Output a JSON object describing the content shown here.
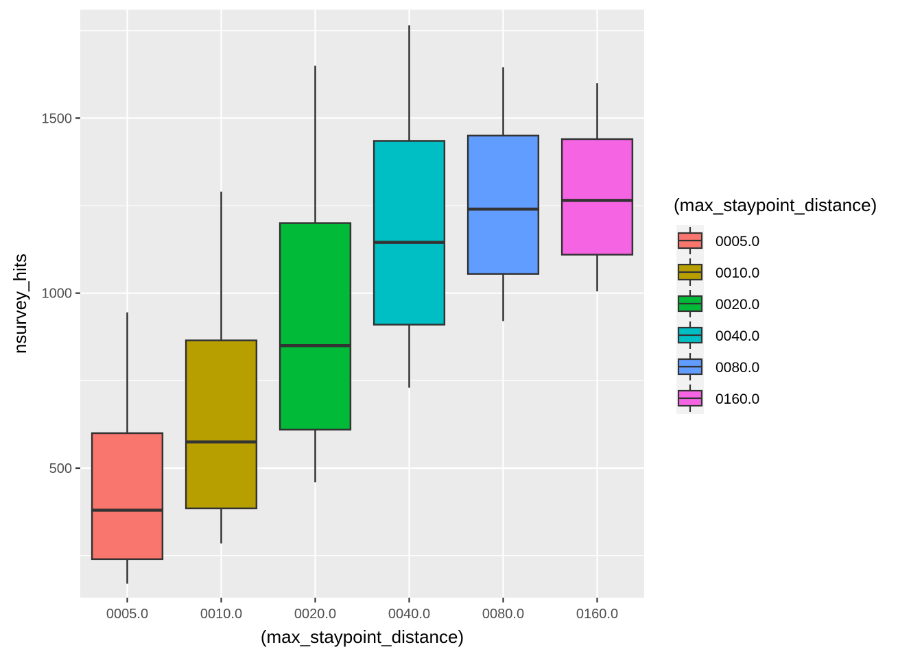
{
  "chart_data": {
    "type": "boxplot",
    "xlabel": "(max_staypoint_distance)",
    "ylabel": "nsurvey_hits",
    "ylim": [
      130,
      1810
    ],
    "y_ticks": [
      500,
      1000,
      1500
    ],
    "grid": true,
    "legend": {
      "title": "(max_staypoint_distance)",
      "position": "right"
    },
    "categories": [
      "0005.0",
      "0010.0",
      "0020.0",
      "0040.0",
      "0080.0",
      "0160.0"
    ],
    "boxes": [
      {
        "category": "0005.0",
        "min": 170,
        "q1": 240,
        "median": 380,
        "q3": 600,
        "max": 945,
        "color": "#F8766D"
      },
      {
        "category": "0010.0",
        "min": 285,
        "q1": 385,
        "median": 575,
        "q3": 865,
        "max": 1290,
        "color": "#B79F00"
      },
      {
        "category": "0020.0",
        "min": 460,
        "q1": 610,
        "median": 850,
        "q3": 1200,
        "max": 1650,
        "color": "#00BA38"
      },
      {
        "category": "0040.0",
        "min": 730,
        "q1": 910,
        "median": 1145,
        "q3": 1435,
        "max": 1765,
        "color": "#00BFC4"
      },
      {
        "category": "0080.0",
        "min": 920,
        "q1": 1055,
        "median": 1240,
        "q3": 1450,
        "max": 1645,
        "color": "#619CFF"
      },
      {
        "category": "0160.0",
        "min": 1005,
        "q1": 1110,
        "median": 1265,
        "q3": 1440,
        "max": 1600,
        "color": "#F564E3"
      }
    ]
  }
}
